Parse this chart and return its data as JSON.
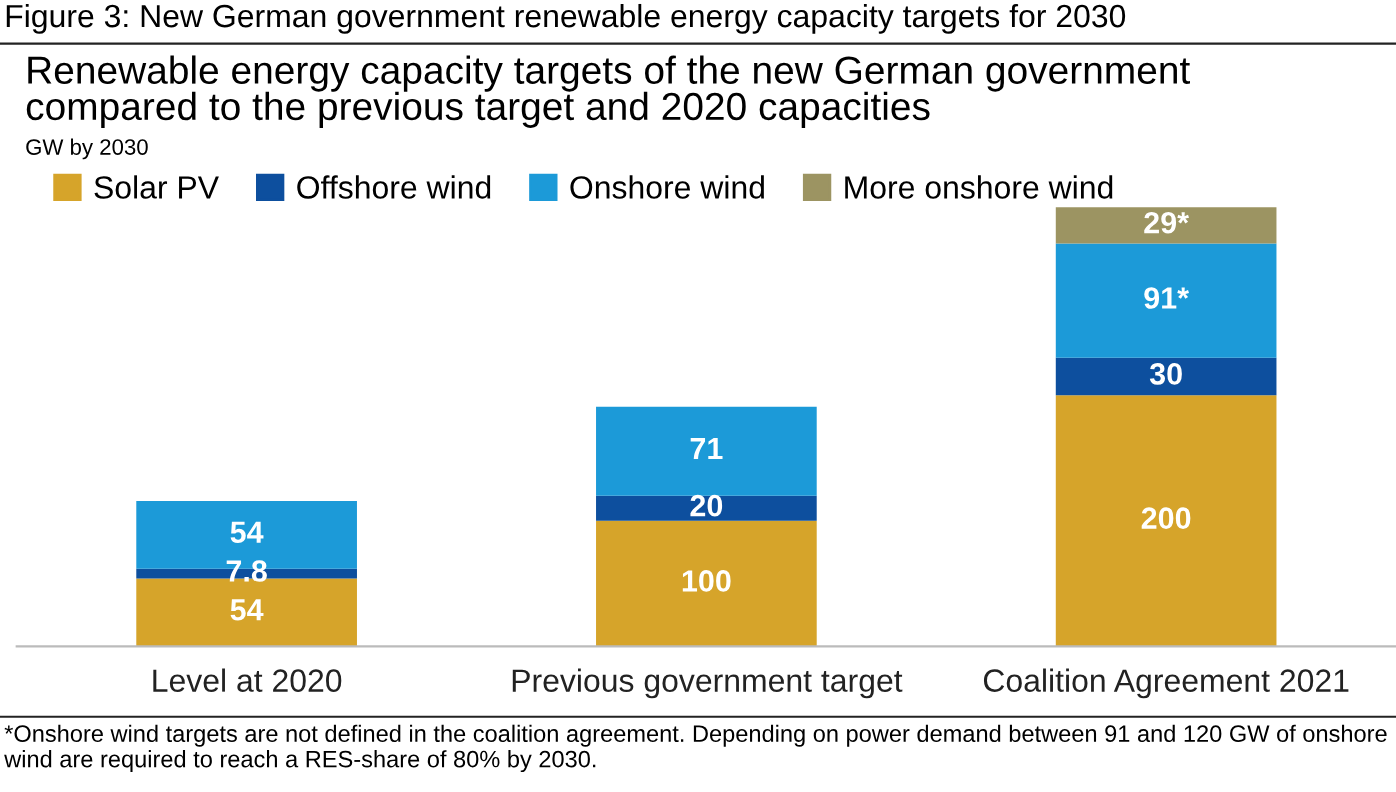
{
  "chart_data": {
    "type": "bar",
    "stacked": true,
    "title": "Renewable energy capacity targets of the new German government\ncompared to the previous target and 2020 capacities",
    "subtitle": "Figure 3: New German government renewable energy capacity targets for 2030",
    "ylabel": "GW by 2030",
    "categories": [
      "Level at 2020",
      "Previous government target",
      "Coalition Agreement 2021"
    ],
    "series": [
      {
        "name": "Solar PV",
        "color": "#d6a42a",
        "values": [
          54,
          100,
          200
        ]
      },
      {
        "name": "Offshore wind",
        "color": "#0d4f9e",
        "values": [
          7.8,
          20,
          30
        ]
      },
      {
        "name": "Onshore wind",
        "color": "#1c9ad8",
        "values": [
          54,
          71,
          91
        ],
        "value_labels": [
          "54",
          "71",
          "91*"
        ]
      },
      {
        "name": "More onshore wind",
        "color": "#9c9462",
        "values": [
          null,
          null,
          29
        ],
        "value_labels": [
          null,
          null,
          "29*"
        ]
      }
    ],
    "data_labels": true,
    "legend": "top left",
    "grid": false,
    "annotations": [
      "*Onshore wind targets are not defined in the coalition agreement. Depending on power demand between 91 and 120 GW of onshore wind are required to reach a RES-share of 80% by 2030."
    ]
  }
}
